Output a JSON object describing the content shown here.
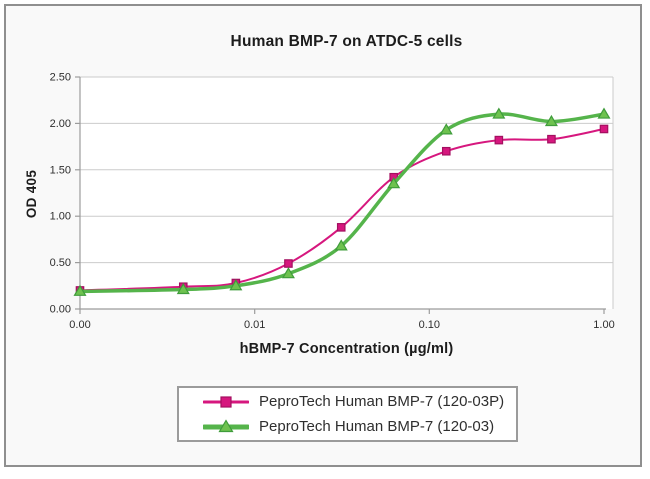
{
  "page": {
    "background_color": "#f9f9f9",
    "frame_border_color": "#8f8f8f"
  },
  "chart_data": {
    "type": "line",
    "title": "Human BMP-7 on ATDC-5 cells",
    "xlabel": "hBMP-7 Concentration (µg/ml)",
    "ylabel": "OD 405",
    "x_scale": "log",
    "grid": true,
    "legend_position": "bottom",
    "ylim": [
      0,
      2.5
    ],
    "y_tick_labels": [
      "0.00",
      "0.50",
      "1.00",
      "1.50",
      "2.00",
      "2.50"
    ],
    "x_tick_labels": [
      "0.00",
      "0.01",
      "0.10",
      "1.00"
    ],
    "x_tick_values": [
      0,
      0.01,
      0.1,
      1.0
    ],
    "x": [
      0,
      0.0039,
      0.0078,
      0.0156,
      0.0313,
      0.0625,
      0.125,
      0.25,
      0.5,
      1.0
    ],
    "series": [
      {
        "name": "PeproTech Human BMP-7 (120-03P)",
        "marker": "square",
        "color": "#d6177e",
        "marker_fill": "#d6177e",
        "marker_edge": "#a31060",
        "line_width": 2,
        "values": [
          0.2,
          0.24,
          0.28,
          0.49,
          0.88,
          1.42,
          1.7,
          1.82,
          1.83,
          1.94
        ]
      },
      {
        "name": "PeproTech Human BMP-7 (120-03)",
        "marker": "triangle",
        "color": "#55b44b",
        "marker_fill": "#6ec24f",
        "marker_edge": "#3f9c3b",
        "line_width": 3.5,
        "values": [
          0.19,
          0.21,
          0.25,
          0.38,
          0.68,
          1.35,
          1.93,
          2.1,
          2.02,
          2.1
        ]
      }
    ],
    "colors": {
      "gridline": "#cbcbcb",
      "axis": "#9c9c9c",
      "tick_text": "#2e2e2e",
      "plot_background": "#ffffff"
    }
  }
}
